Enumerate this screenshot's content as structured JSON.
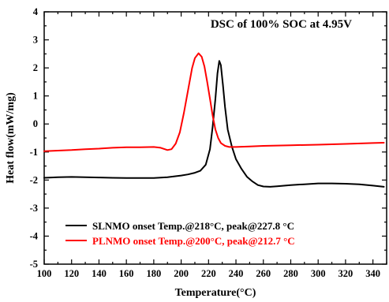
{
  "chart_data": {
    "type": "line",
    "title": "DSC of 100% SOC at 4.95V",
    "xlabel": "Temperature(°C)",
    "ylabel": "Heat flow(mW/mg)",
    "xlim": [
      100,
      350
    ],
    "ylim": [
      -5,
      4
    ],
    "xticks": [
      "100",
      "120",
      "140",
      "160",
      "180",
      "200",
      "220",
      "240",
      "260",
      "280",
      "300",
      "320",
      "340"
    ],
    "yticks": [
      "-5",
      "-4",
      "-3",
      "-2",
      "-1",
      "0",
      "1",
      "2",
      "3",
      "4"
    ],
    "legend_position": "bottom-left",
    "series": [
      {
        "name": "SLNMO onset Temp.@218°C, peak@227.8 °C",
        "color": "#000000",
        "x": [
          100,
          110,
          120,
          130,
          140,
          150,
          160,
          170,
          180,
          190,
          200,
          205,
          210,
          214,
          218,
          221,
          223,
          225,
          226.5,
          227.8,
          229,
          230.5,
          232,
          234,
          237,
          240,
          244,
          248,
          252,
          256,
          260,
          265,
          270,
          280,
          290,
          300,
          310,
          320,
          330,
          340,
          348
        ],
        "y": [
          -1.92,
          -1.9,
          -1.89,
          -1.9,
          -1.91,
          -1.92,
          -1.93,
          -1.93,
          -1.93,
          -1.9,
          -1.84,
          -1.8,
          -1.74,
          -1.67,
          -1.45,
          -0.9,
          -0.1,
          0.9,
          1.8,
          2.25,
          2.1,
          1.4,
          0.6,
          -0.2,
          -0.8,
          -1.25,
          -1.6,
          -1.88,
          -2.05,
          -2.18,
          -2.23,
          -2.24,
          -2.22,
          -2.18,
          -2.15,
          -2.12,
          -2.12,
          -2.13,
          -2.15,
          -2.2,
          -2.24
        ]
      },
      {
        "name": "PLNMO onset Temp.@200°C, peak@212.7 °C",
        "color": "#ff0000",
        "x": [
          100,
          110,
          120,
          130,
          140,
          150,
          160,
          170,
          180,
          185,
          190,
          193,
          196,
          199,
          202,
          205,
          208,
          210,
          212.7,
          215,
          217,
          219,
          221,
          223,
          225,
          227,
          229,
          232,
          235,
          240,
          250,
          260,
          270,
          280,
          300,
          320,
          340,
          348
        ],
        "y": [
          -0.97,
          -0.95,
          -0.93,
          -0.9,
          -0.88,
          -0.85,
          -0.83,
          -0.83,
          -0.82,
          -0.85,
          -0.93,
          -0.9,
          -0.7,
          -0.3,
          0.4,
          1.2,
          2.0,
          2.35,
          2.52,
          2.4,
          2.05,
          1.5,
          0.9,
          0.3,
          -0.2,
          -0.5,
          -0.68,
          -0.78,
          -0.82,
          -0.82,
          -0.8,
          -0.78,
          -0.77,
          -0.76,
          -0.74,
          -0.71,
          -0.68,
          -0.67
        ]
      }
    ]
  }
}
